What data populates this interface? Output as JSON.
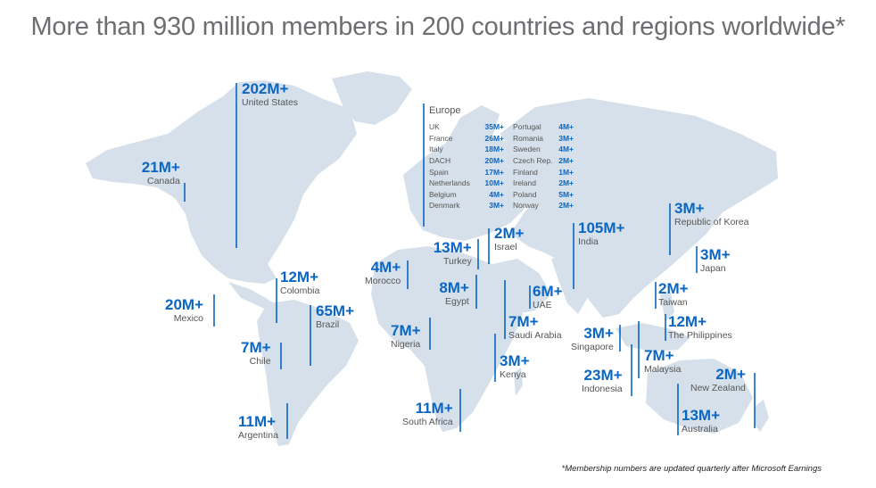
{
  "title": "More than 930 million members in 200 countries and regions worldwide*",
  "footnote": "*Membership numbers are updated quarterly after Microsoft Earnings",
  "colors": {
    "accent": "#0a66c2",
    "land": "#d6e0ea",
    "text": "#555555"
  },
  "markers": [
    {
      "id": "us",
      "count": "202M+",
      "name": "United States"
    },
    {
      "id": "canada",
      "count": "21M+",
      "name": "Canada"
    },
    {
      "id": "mexico",
      "count": "20M+",
      "name": "Mexico"
    },
    {
      "id": "colombia",
      "count": "12M+",
      "name": "Colombia"
    },
    {
      "id": "brazil",
      "count": "65M+",
      "name": "Brazil"
    },
    {
      "id": "chile",
      "count": "7M+",
      "name": "Chile"
    },
    {
      "id": "argentina",
      "count": "11M+",
      "name": "Argentina"
    },
    {
      "id": "morocco",
      "count": "4M+",
      "name": "Morocco"
    },
    {
      "id": "nigeria",
      "count": "7M+",
      "name": "Nigeria"
    },
    {
      "id": "south-africa",
      "count": "11M+",
      "name": "South Africa"
    },
    {
      "id": "egypt",
      "count": "8M+",
      "name": "Egypt"
    },
    {
      "id": "turkey",
      "count": "13M+",
      "name": "Turkey"
    },
    {
      "id": "israel",
      "count": "2M+",
      "name": "Israel"
    },
    {
      "id": "saudi",
      "count": "7M+",
      "name": "Saudi Arabia"
    },
    {
      "id": "kenya",
      "count": "3M+",
      "name": "Kenya"
    },
    {
      "id": "uae",
      "count": "6M+",
      "name": "UAE"
    },
    {
      "id": "india",
      "count": "105M+",
      "name": "India"
    },
    {
      "id": "singapore",
      "count": "3M+",
      "name": "Singapore"
    },
    {
      "id": "indonesia",
      "count": "23M+",
      "name": "Indonesia"
    },
    {
      "id": "malaysia",
      "count": "7M+",
      "name": "Malaysia"
    },
    {
      "id": "philippines",
      "count": "12M+",
      "name": "The Philippines"
    },
    {
      "id": "taiwan",
      "count": "2M+",
      "name": "Taiwan"
    },
    {
      "id": "korea",
      "count": "3M+",
      "name": "Republic of Korea"
    },
    {
      "id": "japan",
      "count": "3M+",
      "name": "Japan"
    },
    {
      "id": "australia",
      "count": "13M+",
      "name": "Australia"
    },
    {
      "id": "new-zealand",
      "count": "2M+",
      "name": "New Zealand"
    }
  ],
  "europe": {
    "title": "Europe",
    "col1": [
      {
        "country": "UK",
        "count": "35M+"
      },
      {
        "country": "France",
        "count": "26M+"
      },
      {
        "country": "Italy",
        "count": "18M+"
      },
      {
        "country": "DACH",
        "count": "20M+"
      },
      {
        "country": "Spain",
        "count": "17M+"
      },
      {
        "country": "Netherlands",
        "count": "10M+"
      },
      {
        "country": "Belgium",
        "count": "4M+"
      },
      {
        "country": "Denmark",
        "count": "3M+"
      }
    ],
    "col2": [
      {
        "country": "Portugal",
        "count": "4M+"
      },
      {
        "country": "Romania",
        "count": "3M+"
      },
      {
        "country": "Sweden",
        "count": "4M+"
      },
      {
        "country": "Czech Rep.",
        "count": "2M+"
      },
      {
        "country": "Finland",
        "count": "1M+"
      },
      {
        "country": "Ireland",
        "count": "2M+"
      },
      {
        "country": "Poland",
        "count": "5M+"
      },
      {
        "country": "Norway",
        "count": "2M+"
      }
    ]
  }
}
